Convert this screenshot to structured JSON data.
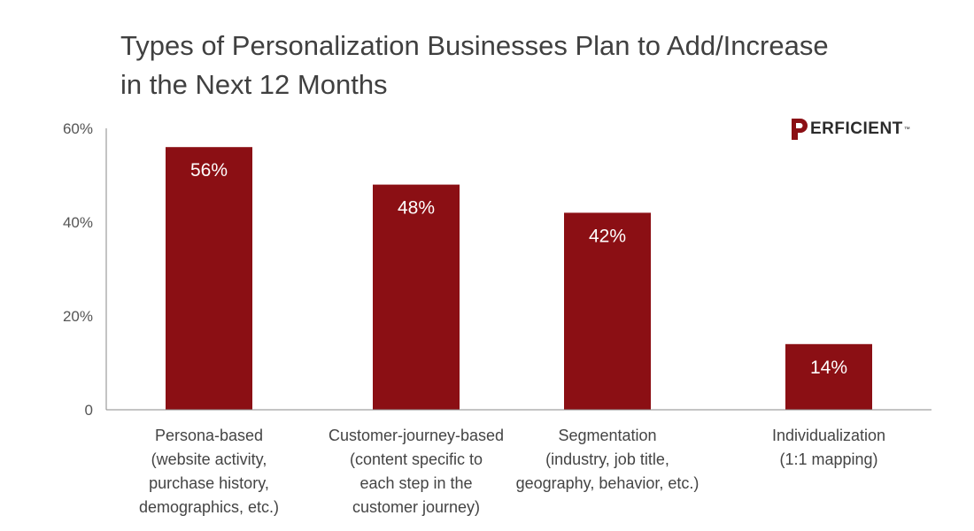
{
  "brand": {
    "logo_text": "ERFICIENT",
    "logo_mark": "P",
    "trademark": "™",
    "accent_color": "#8b0f14"
  },
  "chart_data": {
    "type": "bar",
    "title_lines": [
      "Types of Personalization Businesses Plan to Add/Increase",
      "in the Next 12 Months"
    ],
    "categories": [
      [
        "Persona-based",
        "(website activity,",
        "purchase history,",
        "demographics, etc.)"
      ],
      [
        "Customer-journey-based",
        "(content specific to",
        "each step in the",
        "customer journey)"
      ],
      [
        "Segmentation",
        "(industry, job title,",
        "geography, behavior, etc.)"
      ],
      [
        "Individualization",
        "(1:1 mapping)"
      ]
    ],
    "values": [
      56,
      48,
      42,
      14
    ],
    "data_labels": [
      "56%",
      "48%",
      "42%",
      "14%"
    ],
    "ylim": [
      0,
      60
    ],
    "yticks": [
      0,
      20,
      40,
      60
    ],
    "ytick_labels": [
      "0",
      "20%",
      "40%",
      "60%"
    ],
    "bar_color": "#8b0f14",
    "grid": false,
    "legend": "none"
  }
}
